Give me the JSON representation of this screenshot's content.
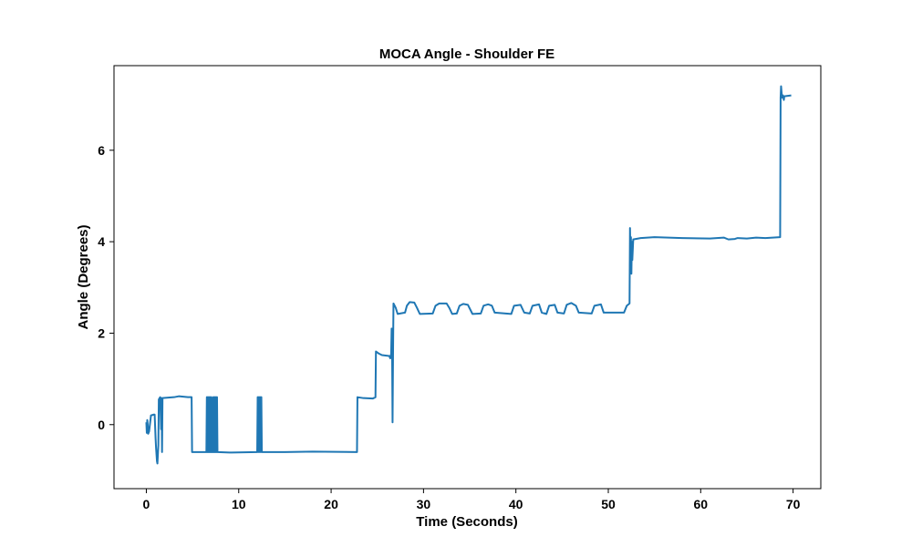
{
  "chart_data": {
    "type": "line",
    "title": "MOCA Angle - Shoulder FE",
    "xlabel": "Time (Seconds)",
    "ylabel": "Angle (Degrees)",
    "xlim": [
      -3.5,
      73
    ],
    "ylim": [
      -1.4,
      7.85
    ],
    "xticks": [
      0,
      10,
      20,
      30,
      40,
      50,
      60,
      70
    ],
    "yticks": [
      0,
      2,
      4,
      6
    ],
    "grid": false,
    "series": [
      {
        "color": "#1f77b4",
        "points": [
          [
            0.0,
            0.05
          ],
          [
            0.05,
            -0.18
          ],
          [
            0.1,
            0.1
          ],
          [
            0.15,
            0.0
          ],
          [
            0.2,
            -0.2
          ],
          [
            0.3,
            -0.15
          ],
          [
            0.4,
            0.02
          ],
          [
            0.5,
            0.2
          ],
          [
            0.8,
            0.22
          ],
          [
            0.9,
            0.22
          ],
          [
            1.0,
            -0.3
          ],
          [
            1.05,
            -0.5
          ],
          [
            1.15,
            -0.8
          ],
          [
            1.2,
            -0.85
          ],
          [
            1.3,
            -0.45
          ],
          [
            1.35,
            0.55
          ],
          [
            1.5,
            0.6
          ],
          [
            1.6,
            -0.1
          ],
          [
            1.65,
            0.58
          ],
          [
            1.7,
            -0.6
          ],
          [
            1.75,
            0.58
          ],
          [
            3.0,
            0.6
          ],
          [
            3.5,
            0.62
          ],
          [
            4.5,
            0.6
          ],
          [
            4.9,
            0.6
          ],
          [
            4.95,
            -0.6
          ],
          [
            6.5,
            -0.6
          ],
          [
            6.55,
            0.6
          ],
          [
            6.6,
            -0.6
          ],
          [
            6.65,
            0.6
          ],
          [
            6.7,
            -0.6
          ],
          [
            6.75,
            0.6
          ],
          [
            6.8,
            -0.6
          ],
          [
            6.85,
            0.6
          ],
          [
            6.9,
            -0.6
          ],
          [
            6.95,
            0.6
          ],
          [
            7.0,
            -0.6
          ],
          [
            7.05,
            0.6
          ],
          [
            7.1,
            -0.6
          ],
          [
            7.2,
            -0.6
          ],
          [
            7.25,
            0.6
          ],
          [
            7.3,
            -0.6
          ],
          [
            7.35,
            0.6
          ],
          [
            7.4,
            -0.6
          ],
          [
            7.45,
            0.6
          ],
          [
            7.5,
            -0.6
          ],
          [
            7.55,
            0.6
          ],
          [
            7.6,
            -0.6
          ],
          [
            7.65,
            0.6
          ],
          [
            7.7,
            -0.6
          ],
          [
            9.0,
            -0.61
          ],
          [
            12.0,
            -0.6
          ],
          [
            12.05,
            0.6
          ],
          [
            12.1,
            -0.6
          ],
          [
            12.15,
            0.6
          ],
          [
            12.2,
            -0.6
          ],
          [
            12.25,
            0.6
          ],
          [
            12.3,
            -0.6
          ],
          [
            12.35,
            0.6
          ],
          [
            12.4,
            -0.6
          ],
          [
            12.45,
            0.6
          ],
          [
            12.5,
            -0.6
          ],
          [
            15.0,
            -0.6
          ],
          [
            18.0,
            -0.59
          ],
          [
            22.8,
            -0.6
          ],
          [
            22.85,
            0.6
          ],
          [
            23.5,
            0.58
          ],
          [
            24.5,
            0.57
          ],
          [
            24.8,
            0.6
          ],
          [
            24.85,
            1.6
          ],
          [
            25.2,
            1.55
          ],
          [
            25.5,
            1.52
          ],
          [
            26.3,
            1.5
          ],
          [
            26.4,
            1.45
          ],
          [
            26.5,
            1.55
          ],
          [
            26.55,
            2.1
          ],
          [
            26.6,
            1.6
          ],
          [
            26.65,
            0.05
          ],
          [
            26.7,
            1.5
          ],
          [
            26.75,
            2.65
          ],
          [
            27.0,
            2.55
          ],
          [
            27.2,
            2.42
          ],
          [
            28.0,
            2.45
          ],
          [
            28.2,
            2.6
          ],
          [
            28.5,
            2.68
          ],
          [
            29.0,
            2.67
          ],
          [
            29.3,
            2.55
          ],
          [
            29.6,
            2.42
          ],
          [
            31.0,
            2.43
          ],
          [
            31.3,
            2.6
          ],
          [
            31.7,
            2.65
          ],
          [
            32.5,
            2.65
          ],
          [
            32.8,
            2.55
          ],
          [
            33.1,
            2.42
          ],
          [
            33.6,
            2.43
          ],
          [
            33.9,
            2.6
          ],
          [
            34.3,
            2.64
          ],
          [
            34.8,
            2.62
          ],
          [
            35.1,
            2.5
          ],
          [
            35.3,
            2.42
          ],
          [
            36.2,
            2.43
          ],
          [
            36.5,
            2.6
          ],
          [
            37.0,
            2.63
          ],
          [
            37.4,
            2.6
          ],
          [
            37.7,
            2.45
          ],
          [
            39.5,
            2.42
          ],
          [
            39.8,
            2.6
          ],
          [
            40.5,
            2.62
          ],
          [
            40.9,
            2.45
          ],
          [
            41.5,
            2.43
          ],
          [
            41.8,
            2.6
          ],
          [
            42.5,
            2.63
          ],
          [
            42.8,
            2.45
          ],
          [
            43.3,
            2.42
          ],
          [
            43.6,
            2.6
          ],
          [
            44.2,
            2.62
          ],
          [
            44.5,
            2.45
          ],
          [
            45.2,
            2.43
          ],
          [
            45.5,
            2.62
          ],
          [
            46.0,
            2.66
          ],
          [
            46.5,
            2.6
          ],
          [
            46.8,
            2.45
          ],
          [
            48.2,
            2.43
          ],
          [
            48.5,
            2.6
          ],
          [
            49.2,
            2.63
          ],
          [
            49.5,
            2.45
          ],
          [
            51.7,
            2.45
          ],
          [
            52.0,
            2.6
          ],
          [
            52.3,
            2.65
          ],
          [
            52.35,
            4.3
          ],
          [
            52.4,
            3.6
          ],
          [
            52.45,
            4.1
          ],
          [
            52.5,
            3.3
          ],
          [
            52.55,
            4.0
          ],
          [
            52.6,
            3.6
          ],
          [
            52.7,
            4.05
          ],
          [
            53.5,
            4.08
          ],
          [
            55.0,
            4.1
          ],
          [
            58.0,
            4.08
          ],
          [
            61.0,
            4.07
          ],
          [
            62.5,
            4.09
          ],
          [
            63.0,
            4.05
          ],
          [
            63.7,
            4.06
          ],
          [
            64.0,
            4.08
          ],
          [
            65.0,
            4.07
          ],
          [
            66.0,
            4.09
          ],
          [
            67.0,
            4.08
          ],
          [
            68.6,
            4.1
          ],
          [
            68.65,
            7.15
          ],
          [
            68.7,
            7.4
          ],
          [
            68.8,
            7.15
          ],
          [
            68.9,
            7.2
          ],
          [
            69.0,
            7.1
          ],
          [
            69.05,
            7.18
          ],
          [
            69.8,
            7.2
          ]
        ]
      }
    ]
  }
}
